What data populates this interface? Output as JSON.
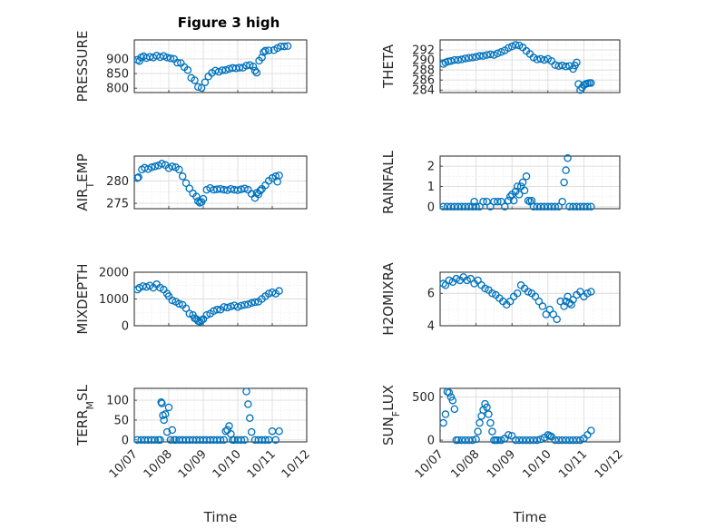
{
  "title": "Figure 3 high",
  "marker_color": "#0072bd",
  "chart_data": [
    {
      "type": "scatter",
      "panel": "top-left",
      "ylabel": "PRESSURE",
      "ylabel_sub": "",
      "ylim": [
        785,
        965
      ],
      "yticks": [
        800,
        850,
        900
      ],
      "ytick_labels": [
        "800",
        "850",
        "900"
      ],
      "xlim": [
        0,
        5
      ],
      "xticks": [
        0,
        1,
        2,
        3,
        4,
        5
      ],
      "xtick_labels": [],
      "x": [
        0.09,
        0.15,
        0.2,
        0.27,
        0.35,
        0.45,
        0.55,
        0.65,
        0.75,
        0.85,
        0.95,
        1.05,
        1.15,
        1.25,
        1.35,
        1.45,
        1.55,
        1.65,
        1.75,
        1.85,
        1.95,
        2.05,
        2.15,
        2.25,
        2.35,
        2.45,
        2.55,
        2.65,
        2.75,
        2.85,
        2.95,
        3.05,
        3.15,
        3.25,
        3.35,
        3.45,
        3.5,
        3.55,
        3.62,
        3.7,
        3.75,
        3.8,
        3.9,
        4.05,
        4.15,
        4.25,
        4.35,
        4.45
      ],
      "y": [
        897,
        893,
        905,
        909,
        903,
        907,
        905,
        911,
        906,
        910,
        905,
        902,
        900,
        887,
        886,
        872,
        862,
        835,
        827,
        804,
        801,
        820,
        840,
        852,
        860,
        856,
        861,
        862,
        866,
        869,
        868,
        870,
        870,
        877,
        879,
        874,
        860,
        853,
        894,
        905,
        923,
        928,
        929,
        930,
        937,
        943,
        943,
        944
      ]
    },
    {
      "type": "scatter",
      "panel": "top-right",
      "ylabel": "THETA",
      "ylabel_sub": "",
      "ylim": [
        283.5,
        294
      ],
      "yticks": [
        284,
        286,
        288,
        290,
        292
      ],
      "ytick_labels": [
        "284",
        "286",
        "288",
        "290",
        "292"
      ],
      "xlim": [
        0,
        5
      ],
      "xticks": [
        0,
        1,
        2,
        3,
        4,
        5
      ],
      "xtick_labels": [],
      "x": [
        0.09,
        0.15,
        0.22,
        0.3,
        0.4,
        0.5,
        0.6,
        0.7,
        0.8,
        0.9,
        1.0,
        1.1,
        1.2,
        1.3,
        1.4,
        1.5,
        1.6,
        1.7,
        1.8,
        1.9,
        2.0,
        2.1,
        2.2,
        2.3,
        2.4,
        2.5,
        2.6,
        2.7,
        2.8,
        2.9,
        3.0,
        3.1,
        3.2,
        3.3,
        3.4,
        3.5,
        3.6,
        3.7,
        3.75,
        3.8,
        3.85,
        3.9,
        3.95,
        4.0,
        4.05,
        4.1,
        4.15,
        4.2
      ],
      "y": [
        289.2,
        289.5,
        289.7,
        289.8,
        290.0,
        290.0,
        290.1,
        290.3,
        290.4,
        290.5,
        290.6,
        290.8,
        290.8,
        291.0,
        291.1,
        291.0,
        291.3,
        291.6,
        291.9,
        292.4,
        292.7,
        293.0,
        292.9,
        292.5,
        291.8,
        291.2,
        290.5,
        290.1,
        290.2,
        290.0,
        290.2,
        289.8,
        289.0,
        288.8,
        288.9,
        288.7,
        288.8,
        288.2,
        288.9,
        289.5,
        285.2,
        284.0,
        284.5,
        285.0,
        285.2,
        285.3,
        285.4,
        285.4
      ]
    },
    {
      "type": "scatter",
      "panel": "second-left",
      "ylabel": "AIR_TEMP",
      "ylabel_sub": "T",
      "ylim": [
        273.8,
        285.5
      ],
      "yticks": [
        275,
        280
      ],
      "ytick_labels": [
        "275",
        "280"
      ],
      "xlim": [
        0,
        5
      ],
      "xticks": [
        0,
        1,
        2,
        3,
        4,
        5
      ],
      "xtick_labels": [],
      "x": [
        0.09,
        0.12,
        0.22,
        0.3,
        0.4,
        0.5,
        0.6,
        0.7,
        0.8,
        0.9,
        1.0,
        1.1,
        1.2,
        1.3,
        1.4,
        1.5,
        1.6,
        1.7,
        1.8,
        1.85,
        1.9,
        1.95,
        2.0,
        2.1,
        2.2,
        2.3,
        2.4,
        2.5,
        2.6,
        2.7,
        2.8,
        2.9,
        3.0,
        3.1,
        3.2,
        3.3,
        3.4,
        3.5,
        3.55,
        3.6,
        3.65,
        3.7,
        3.8,
        3.9,
        4.0,
        4.1,
        4.15,
        4.2
      ],
      "y": [
        280.6,
        280.8,
        282.5,
        282.9,
        282.6,
        283.0,
        283.2,
        283.4,
        283.8,
        283.5,
        282.8,
        283.2,
        283.0,
        282.5,
        281.0,
        279.5,
        278.3,
        277.2,
        276.5,
        275.5,
        275.1,
        275.3,
        276.0,
        278.0,
        278.4,
        278.0,
        278.1,
        278.2,
        278.0,
        277.9,
        278.2,
        278.0,
        277.9,
        278.1,
        278.3,
        278.0,
        277.1,
        276.2,
        277.3,
        277.0,
        277.8,
        278.2,
        279.0,
        280.0,
        280.6,
        281.0,
        279.8,
        281.2
      ]
    },
    {
      "type": "scatter",
      "panel": "second-right",
      "ylabel": "RAINFALL",
      "ylabel_sub": "",
      "ylim": [
        -0.1,
        2.5
      ],
      "yticks": [
        0,
        1,
        2
      ],
      "ytick_labels": [
        "0",
        "1",
        "2"
      ],
      "xlim": [
        0,
        5
      ],
      "xticks": [
        0,
        1,
        2,
        3,
        4,
        5
      ],
      "xtick_labels": [],
      "x": [
        0.09,
        0.2,
        0.3,
        0.4,
        0.5,
        0.6,
        0.7,
        0.8,
        0.9,
        0.95,
        1.0,
        1.1,
        1.2,
        1.3,
        1.4,
        1.5,
        1.6,
        1.7,
        1.8,
        1.9,
        1.95,
        2.0,
        2.05,
        2.1,
        2.15,
        2.2,
        2.25,
        2.3,
        2.35,
        2.4,
        2.45,
        2.5,
        2.55,
        2.6,
        2.7,
        2.8,
        2.9,
        3.0,
        3.1,
        3.2,
        3.3,
        3.4,
        3.45,
        3.5,
        3.55,
        3.6,
        3.7,
        3.8,
        3.9,
        4.0,
        4.1,
        4.2
      ],
      "y": [
        0,
        0,
        0,
        0,
        0,
        0,
        0,
        0,
        0,
        0.25,
        0,
        0,
        0.25,
        0.25,
        0,
        0.25,
        0.25,
        0.25,
        0,
        0.3,
        0.5,
        0.6,
        0.3,
        0.75,
        1.0,
        0.6,
        1.0,
        1.2,
        0.8,
        1.5,
        0.3,
        0.25,
        0.3,
        0,
        0,
        0,
        0,
        0,
        0,
        0,
        0,
        0.25,
        1.2,
        1.8,
        2.4,
        0,
        0,
        0,
        0,
        0,
        0,
        0
      ]
    },
    {
      "type": "scatter",
      "panel": "third-left",
      "ylabel": "MIXDEPTH",
      "ylabel_sub": "",
      "ylim": [
        0,
        2000
      ],
      "yticks": [
        0,
        1000,
        2000
      ],
      "ytick_labels": [
        "0",
        "1000",
        "2000"
      ],
      "xlim": [
        0,
        5
      ],
      "xticks": [
        0,
        1,
        2,
        3,
        4,
        5
      ],
      "xtick_labels": [],
      "x": [
        0.09,
        0.15,
        0.25,
        0.35,
        0.45,
        0.55,
        0.65,
        0.75,
        0.85,
        0.95,
        1.0,
        1.1,
        1.2,
        1.3,
        1.4,
        1.5,
        1.6,
        1.7,
        1.75,
        1.8,
        1.85,
        1.9,
        1.95,
        2.0,
        2.1,
        2.2,
        2.3,
        2.4,
        2.5,
        2.6,
        2.7,
        2.8,
        2.9,
        3.0,
        3.1,
        3.2,
        3.3,
        3.4,
        3.5,
        3.6,
        3.7,
        3.8,
        3.9,
        4.0,
        4.1,
        4.2
      ],
      "y": [
        1350,
        1420,
        1480,
        1450,
        1500,
        1420,
        1550,
        1420,
        1350,
        1200,
        1100,
        950,
        900,
        820,
        780,
        650,
        450,
        400,
        280,
        250,
        180,
        150,
        200,
        250,
        400,
        450,
        550,
        600,
        600,
        700,
        680,
        720,
        760,
        700,
        750,
        780,
        800,
        850,
        880,
        900,
        1000,
        1100,
        1200,
        1250,
        1200,
        1300
      ]
    },
    {
      "type": "scatter",
      "panel": "third-right",
      "ylabel": "H2OMIXRA",
      "ylabel_sub": "",
      "ylim": [
        4,
        7.3
      ],
      "yticks": [
        4,
        6
      ],
      "ytick_labels": [
        "4",
        "6"
      ],
      "xlim": [
        0,
        5
      ],
      "xticks": [
        0,
        1,
        2,
        3,
        4,
        5
      ],
      "xtick_labels": [],
      "x": [
        0.09,
        0.15,
        0.25,
        0.35,
        0.45,
        0.55,
        0.65,
        0.75,
        0.85,
        0.95,
        1.05,
        1.15,
        1.25,
        1.35,
        1.45,
        1.55,
        1.65,
        1.75,
        1.85,
        1.95,
        2.05,
        2.15,
        2.25,
        2.35,
        2.45,
        2.55,
        2.65,
        2.75,
        2.85,
        2.95,
        3.05,
        3.15,
        3.25,
        3.35,
        3.45,
        3.5,
        3.55,
        3.6,
        3.65,
        3.7,
        3.8,
        3.9,
        4.0,
        4.1,
        4.2
      ],
      "y": [
        6.6,
        6.5,
        6.8,
        6.7,
        6.9,
        6.8,
        7.0,
        6.8,
        6.9,
        6.6,
        6.8,
        6.5,
        6.3,
        6.2,
        6.0,
        5.9,
        5.7,
        5.5,
        5.3,
        5.5,
        5.8,
        6.0,
        6.5,
        6.3,
        6.1,
        6.0,
        5.8,
        5.5,
        5.2,
        4.7,
        5.0,
        4.7,
        4.4,
        5.5,
        5.2,
        5.5,
        5.8,
        5.4,
        5.3,
        5.6,
        5.9,
        6.1,
        5.8,
        6.0,
        6.1
      ]
    },
    {
      "type": "scatter",
      "panel": "bottom-left",
      "ylabel": "TERR_MSL",
      "ylabel_sub": "M",
      "ylim": [
        -5,
        130
      ],
      "yticks": [
        0,
        50,
        100
      ],
      "ytick_labels": [
        "0",
        "50",
        "100"
      ],
      "xlim": [
        0,
        5
      ],
      "xticks": [
        0,
        1,
        2,
        3,
        4,
        5
      ],
      "xtick_labels": [
        "10/07",
        "10/08",
        "10/09",
        "10/10",
        "10/11",
        "10/12"
      ],
      "xlabel": "Time",
      "x": [
        0.09,
        0.2,
        0.3,
        0.4,
        0.5,
        0.6,
        0.7,
        0.75,
        0.78,
        0.8,
        0.83,
        0.86,
        0.9,
        0.95,
        1.0,
        1.05,
        1.1,
        1.15,
        1.2,
        1.3,
        1.4,
        1.5,
        1.6,
        1.7,
        1.8,
        1.9,
        2.0,
        2.1,
        2.2,
        2.3,
        2.4,
        2.5,
        2.6,
        2.65,
        2.7,
        2.75,
        2.8,
        2.85,
        2.9,
        3.0,
        3.1,
        3.2,
        3.25,
        3.3,
        3.35,
        3.4,
        3.5,
        3.6,
        3.7,
        3.8,
        3.9,
        4.0,
        4.1,
        4.2
      ],
      "y": [
        0,
        0,
        0,
        0,
        0,
        0,
        0,
        0,
        95,
        92,
        62,
        50,
        65,
        20,
        82,
        0,
        25,
        0,
        0,
        0,
        0,
        0,
        0,
        0,
        0,
        0,
        0,
        0,
        0,
        0,
        0,
        0,
        0,
        22,
        25,
        35,
        15,
        0,
        0,
        0,
        0,
        0,
        122,
        90,
        55,
        20,
        0,
        0,
        0,
        0,
        0,
        22,
        0,
        22
      ]
    },
    {
      "type": "scatter",
      "panel": "bottom-right",
      "ylabel": "SUN_FLUX",
      "ylabel_sub": "F",
      "ylim": [
        -20,
        600
      ],
      "yticks": [
        0,
        500
      ],
      "ytick_labels": [
        "0",
        "500"
      ],
      "xlim": [
        0,
        5
      ],
      "xticks": [
        0,
        1,
        2,
        3,
        4,
        5
      ],
      "xtick_labels": [
        "10/07",
        "10/08",
        "10/09",
        "10/10",
        "10/11",
        "10/12"
      ],
      "xlabel": "Time",
      "x": [
        0.09,
        0.15,
        0.2,
        0.25,
        0.3,
        0.35,
        0.4,
        0.45,
        0.5,
        0.6,
        0.7,
        0.8,
        0.9,
        1.0,
        1.05,
        1.1,
        1.15,
        1.2,
        1.25,
        1.3,
        1.35,
        1.4,
        1.45,
        1.5,
        1.55,
        1.6,
        1.7,
        1.8,
        1.9,
        2.0,
        2.1,
        2.2,
        2.3,
        2.4,
        2.5,
        2.6,
        2.7,
        2.8,
        2.9,
        3.0,
        3.05,
        3.1,
        3.2,
        3.3,
        3.4,
        3.5,
        3.6,
        3.7,
        3.8,
        3.9,
        4.0,
        4.1,
        4.2
      ],
      "y": [
        200,
        300,
        560,
        550,
        500,
        460,
        360,
        0,
        0,
        0,
        0,
        0,
        0,
        10,
        100,
        200,
        280,
        350,
        420,
        380,
        300,
        200,
        100,
        0,
        0,
        0,
        0,
        20,
        60,
        50,
        0,
        0,
        0,
        0,
        0,
        0,
        0,
        10,
        30,
        60,
        50,
        40,
        0,
        0,
        0,
        0,
        0,
        0,
        0,
        0,
        20,
        60,
        110
      ]
    }
  ]
}
